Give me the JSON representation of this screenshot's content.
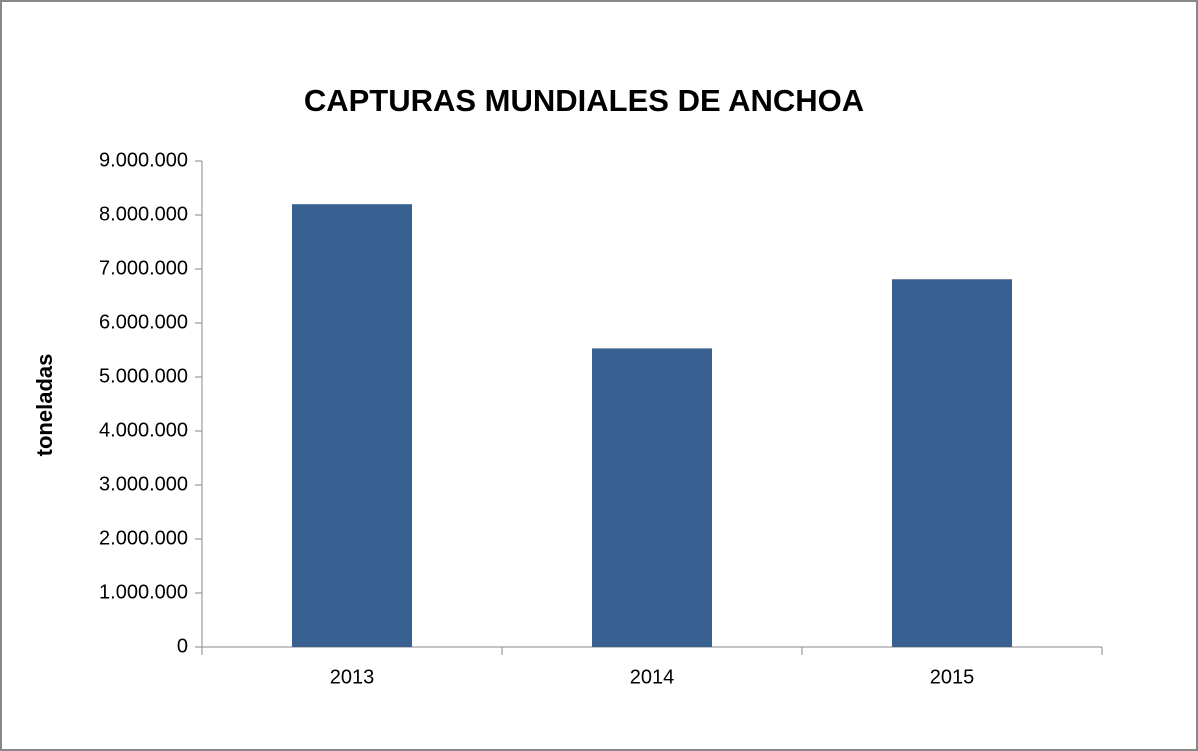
{
  "chart_data": {
    "type": "bar",
    "title": "CAPTURAS MUNDIALES DE ANCHOA",
    "y_label": "toneladas",
    "categories": [
      "2013",
      "2014",
      "2015"
    ],
    "values": [
      8200000,
      5530000,
      6810000
    ],
    "color": "#386090",
    "ylim": [
      0,
      9000000
    ],
    "yticks": [
      0,
      {
        "value": 1000000,
        "label": "1.000.000"
      },
      {
        "value": 2000000,
        "label": "2.000.000"
      },
      {
        "value": 3000000,
        "label": "3.000.000"
      },
      {
        "value": 4000000,
        "label": "4.000.000"
      },
      {
        "value": 5000000,
        "label": "5.000.000"
      },
      {
        "value": 6000000,
        "label": "6.000.000"
      },
      {
        "value": 7000000,
        "label": "7.000.000"
      },
      {
        "value": 8000000,
        "label": "8.000.000"
      },
      {
        "value": 9000000,
        "label": "9.000.000"
      }
    ],
    "grid": false
  }
}
